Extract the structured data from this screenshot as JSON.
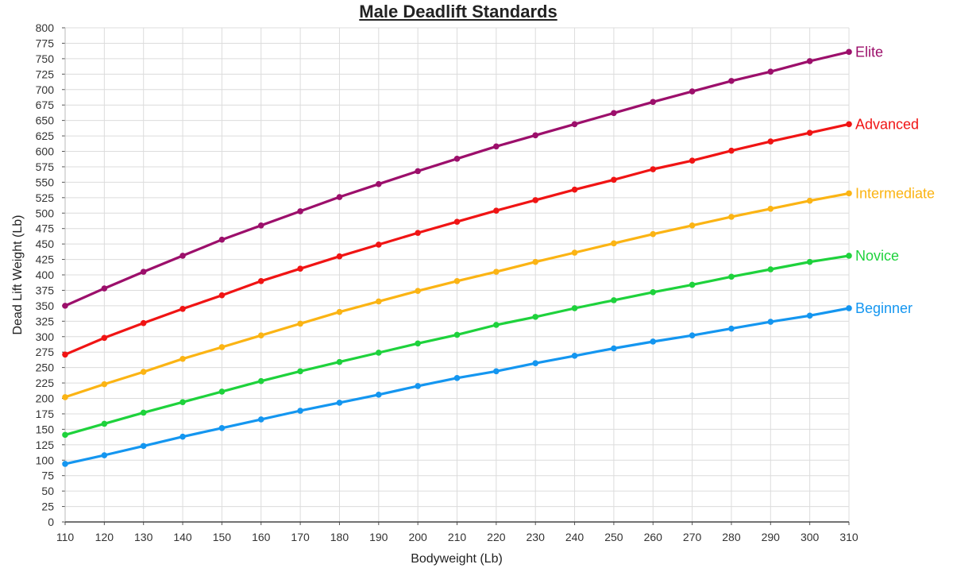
{
  "chart_data": {
    "type": "line",
    "title": "Male Deadlift Standards",
    "xlabel": "Bodyweight (Lb)",
    "ylabel": "Dead Lift Weight (Lb)",
    "xlim": [
      110,
      310
    ],
    "ylim": [
      0,
      800
    ],
    "x_ticks": [
      110,
      120,
      130,
      140,
      150,
      160,
      170,
      180,
      190,
      200,
      210,
      220,
      230,
      240,
      250,
      260,
      270,
      280,
      290,
      300,
      310
    ],
    "y_ticks": [
      0,
      25,
      50,
      75,
      100,
      125,
      150,
      175,
      200,
      225,
      250,
      275,
      300,
      325,
      350,
      375,
      400,
      425,
      450,
      475,
      500,
      525,
      550,
      575,
      600,
      625,
      650,
      675,
      700,
      725,
      750,
      775,
      800
    ],
    "grid": true,
    "legend_position": "inline-right",
    "x": [
      110,
      120,
      130,
      140,
      150,
      160,
      170,
      180,
      190,
      200,
      210,
      220,
      230,
      240,
      250,
      260,
      270,
      280,
      290,
      300,
      310
    ],
    "series": [
      {
        "name": "Elite",
        "color": "#9c0f6b",
        "values": [
          350,
          378,
          405,
          431,
          457,
          480,
          503,
          526,
          547,
          568,
          588,
          608,
          626,
          644,
          662,
          680,
          697,
          714,
          729,
          746,
          761
        ]
      },
      {
        "name": "Advanced",
        "color": "#f01414",
        "values": [
          271,
          298,
          322,
          345,
          367,
          390,
          410,
          430,
          449,
          468,
          486,
          504,
          521,
          538,
          554,
          571,
          585,
          601,
          616,
          630,
          644
        ]
      },
      {
        "name": "Intermediate",
        "color": "#fbb414",
        "values": [
          202,
          223,
          243,
          264,
          283,
          302,
          321,
          340,
          357,
          374,
          390,
          405,
          421,
          436,
          451,
          466,
          480,
          494,
          507,
          520,
          532
        ]
      },
      {
        "name": "Novice",
        "color": "#1ed23c",
        "values": [
          141,
          159,
          177,
          194,
          211,
          228,
          244,
          259,
          274,
          289,
          303,
          319,
          332,
          346,
          359,
          372,
          384,
          397,
          409,
          421,
          431
        ]
      },
      {
        "name": "Beginner",
        "color": "#1496f0",
        "values": [
          94,
          108,
          123,
          138,
          152,
          166,
          180,
          193,
          206,
          220,
          233,
          244,
          257,
          269,
          281,
          292,
          302,
          313,
          324,
          334,
          346
        ]
      }
    ]
  }
}
